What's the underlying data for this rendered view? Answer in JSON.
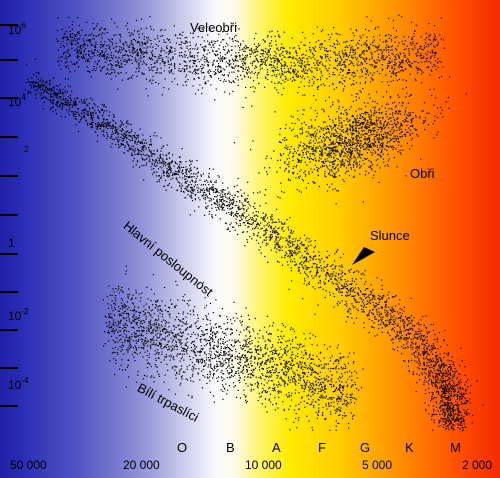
{
  "regions": {
    "supergiants": "Veleobři",
    "giants": "Obři",
    "main_sequence": "Hlavní posloupnost",
    "white_dwarfs": "Bílí trpaslíci",
    "sun": "Slunce"
  },
  "y_axis": {
    "ticks": [
      {
        "base": "10",
        "exp": "6"
      },
      {
        "base": "10",
        "exp": "4"
      },
      {
        "base": "",
        "exp": "2"
      },
      {
        "base": "1",
        "exp": ""
      },
      {
        "base": "10",
        "exp": "-2"
      },
      {
        "base": "10",
        "exp": "-4"
      }
    ]
  },
  "spectral_classes": [
    "O",
    "B",
    "A",
    "F",
    "G",
    "K",
    "M"
  ],
  "temperatures": [
    "50 000",
    "20 000",
    "10 000",
    "5 000",
    "2 000"
  ]
}
